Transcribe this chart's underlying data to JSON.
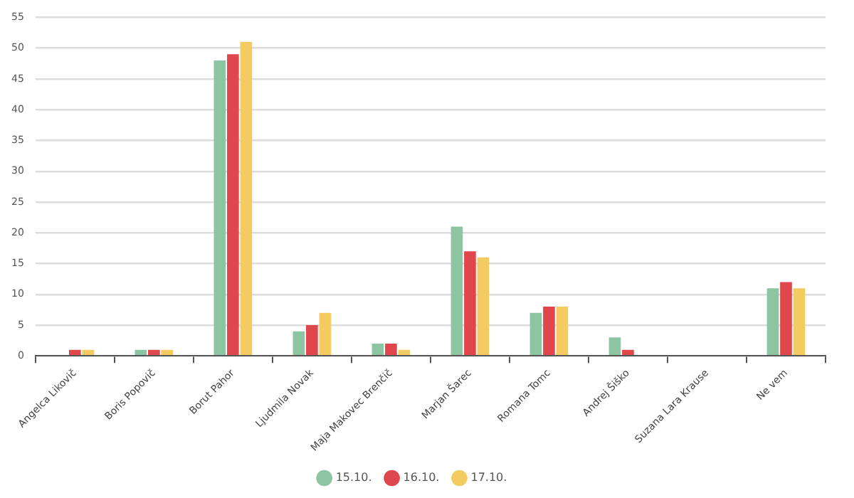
{
  "chart_data": {
    "type": "bar",
    "categories": [
      "Angelca Likovič",
      "Boris Popovič",
      "Borut Pahor",
      "Ljudmila Novak",
      "Maja Makovec Brenčič",
      "Marjan Šarec",
      "Romana Tomc",
      "Andrej Šiško",
      "Suzana Lara Krause",
      "Ne vem"
    ],
    "series": [
      {
        "name": "15.10.",
        "color": "#8dc5a3",
        "values": [
          0,
          1,
          48,
          4,
          2,
          21,
          7,
          3,
          0,
          11
        ]
      },
      {
        "name": "16.10.",
        "color": "#e0474c",
        "values": [
          1,
          1,
          49,
          5,
          2,
          17,
          8,
          1,
          0,
          12
        ]
      },
      {
        "name": "17.10.",
        "color": "#f3cb61",
        "values": [
          1,
          1,
          51,
          7,
          1,
          16,
          8,
          0,
          0,
          11
        ]
      }
    ],
    "ylim": [
      0,
      55
    ],
    "yticks": [
      0,
      5,
      10,
      15,
      20,
      25,
      30,
      35,
      40,
      45,
      50,
      55
    ],
    "grid": "y",
    "legend": "bottom",
    "marker": "circle"
  }
}
